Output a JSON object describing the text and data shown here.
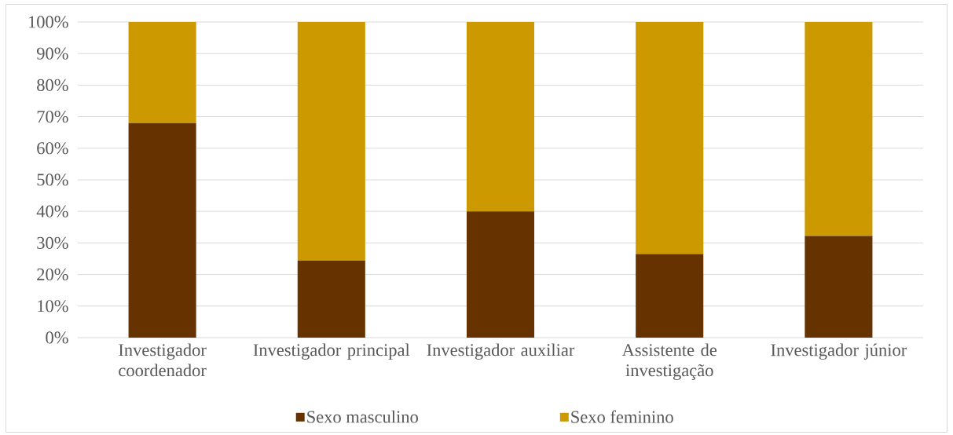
{
  "chart_data": {
    "type": "bar",
    "stacked": true,
    "categories": [
      "Investigador coordenador",
      "Investigador principal",
      "Investigador auxiliar",
      "Assistente de investigação",
      "Investigador júnior"
    ],
    "series": [
      {
        "name": "Sexo masculino",
        "color": "#663300",
        "values": [
          68,
          24.4,
          40,
          26.5,
          32.2
        ]
      },
      {
        "name": "Sexo feminino",
        "color": "#cc9900",
        "values": [
          32,
          75.6,
          60,
          73.5,
          67.8
        ]
      }
    ],
    "ylim": [
      0,
      100
    ],
    "yticks": [
      {
        "value": 0,
        "label": "0%"
      },
      {
        "value": 10,
        "label": "10%"
      },
      {
        "value": 20,
        "label": "20%"
      },
      {
        "value": 30,
        "label": "30%"
      },
      {
        "value": 40,
        "label": "40%"
      },
      {
        "value": 50,
        "label": "50%"
      },
      {
        "value": 60,
        "label": "60%"
      },
      {
        "value": 70,
        "label": "70%"
      },
      {
        "value": 80,
        "label": "80%"
      },
      {
        "value": 90,
        "label": "90%"
      },
      {
        "value": 100,
        "label": "100%"
      }
    ],
    "grid": "y",
    "legend": "bottom"
  }
}
